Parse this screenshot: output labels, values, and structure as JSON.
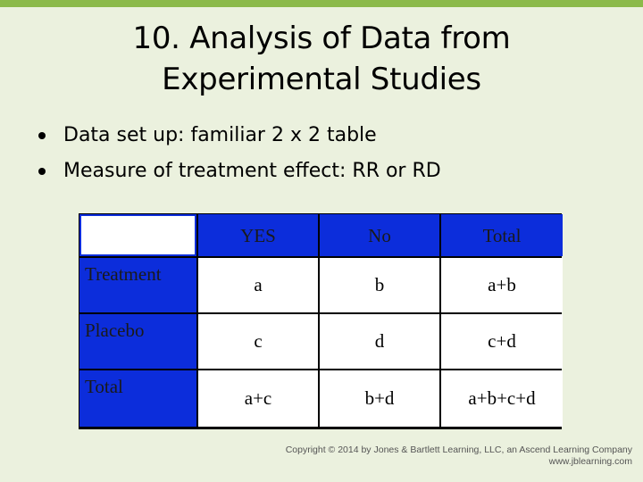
{
  "slide": {
    "title_line1": "10. Analysis of Data from",
    "title_line2": "Experimental Studies",
    "bullets": [
      "Data set up: familiar 2 x 2 table",
      "Measure of treatment effect: RR or RD"
    ]
  },
  "table": {
    "header": [
      "",
      "YES",
      "No",
      "Total"
    ],
    "rows": [
      {
        "label": "Treatment",
        "cells": [
          "a",
          "b",
          "a+b"
        ]
      },
      {
        "label": "Placebo",
        "cells": [
          "c",
          "d",
          "c+d"
        ]
      },
      {
        "label": "Total",
        "cells": [
          "a+c",
          "b+d",
          "a+b+c+d"
        ]
      }
    ]
  },
  "footer": {
    "copyright": "Copyright © 2014 by Jones & Bartlett Learning, LLC, an Ascend Learning Company",
    "url": "www.jblearning.com"
  },
  "colors": {
    "background": "#ebf1de",
    "accent_bar": "#8bba4a",
    "header_fill": "#0c2ddb"
  }
}
